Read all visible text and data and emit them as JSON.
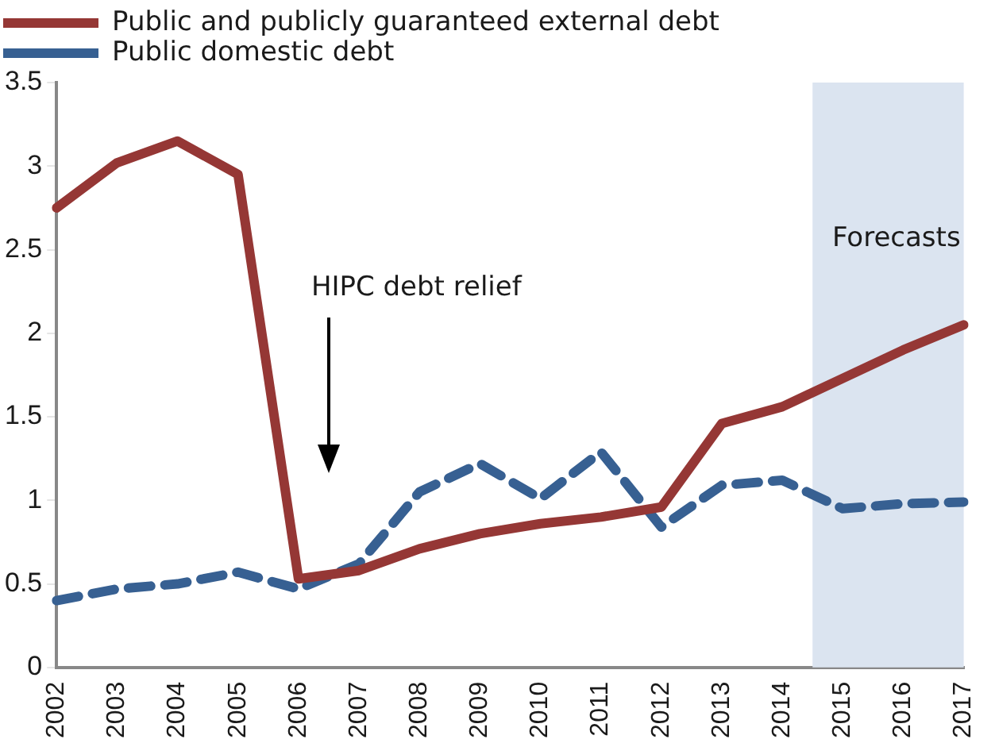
{
  "chart_data": {
    "type": "line",
    "categories": [
      "2002",
      "2003",
      "2004",
      "2005",
      "2006",
      "2007",
      "2008",
      "2009",
      "2010",
      "2011",
      "2012",
      "2013",
      "2014",
      "2015",
      "2016",
      "2017"
    ],
    "series": [
      {
        "name": "Public and publicly guaranteed external debt",
        "color": "#953735",
        "line_style": "solid",
        "values": [
          2.75,
          3.02,
          3.15,
          2.95,
          0.53,
          0.58,
          0.71,
          0.8,
          0.86,
          0.9,
          0.96,
          1.46,
          1.56,
          1.73,
          1.9,
          2.05
        ]
      },
      {
        "name": "Public domestic debt",
        "color": "#376092",
        "line_style": "dashed",
        "values": [
          0.4,
          0.47,
          0.5,
          0.57,
          0.47,
          0.62,
          1.05,
          1.22,
          1.01,
          1.29,
          0.84,
          1.09,
          1.12,
          0.95,
          0.98,
          0.99
        ]
      }
    ],
    "ylim": [
      0,
      3.5
    ],
    "yticks": [
      0,
      {
        "value": 0.5,
        "label": "0.5"
      },
      1,
      {
        "value": 1.5,
        "label": "1.5"
      },
      2,
      {
        "value": 2.5,
        "label": "2.5"
      },
      3,
      {
        "value": 3.5,
        "label": "3.5"
      }
    ],
    "grid": false,
    "legend": "top",
    "marker": "none",
    "bands": [
      {
        "axis": "x",
        "from": "2015",
        "to": "2017",
        "label": "Forecasts",
        "color": "#dbe4f0"
      }
    ],
    "annotations": [
      "HIPC debt relief"
    ]
  }
}
